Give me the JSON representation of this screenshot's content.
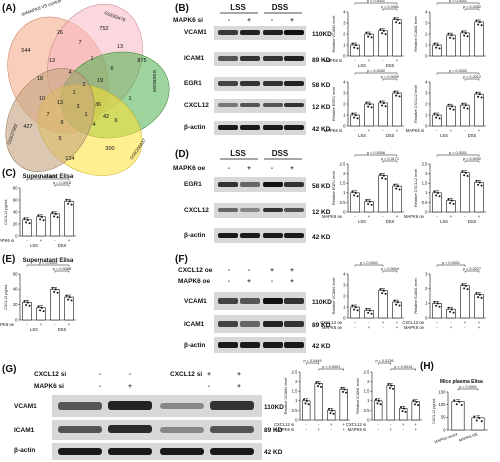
{
  "panel_A": {
    "letter": "(A)",
    "venn": {
      "sets": [
        {
          "label": "shMAPK6 VS control",
          "color": "#f4a582"
        },
        {
          "label": "GSE83478",
          "color": "#f7b6c2"
        },
        {
          "label": "GSE89399",
          "color": "#4daf4a"
        },
        {
          "label": "GSE206437",
          "color": "#ffe135"
        },
        {
          "label": "GSE27982",
          "color": "#c5a47e"
        }
      ],
      "counts": [
        "544",
        "26",
        "752",
        "875",
        "427",
        "300",
        "134",
        "18",
        "7",
        "13",
        "1",
        "6",
        "5",
        "36",
        "42",
        "13",
        "10",
        "13",
        "1",
        "1",
        "2",
        "4",
        "4",
        "7",
        "19",
        "8",
        "3",
        "6",
        "1"
      ]
    }
  },
  "panel_B": {
    "letter": "(B)",
    "conditions": [
      "LSS",
      "DSS"
    ],
    "treatment_label": "MAPK6 si",
    "lanes": [
      "-",
      "+",
      "-",
      "+"
    ],
    "rows": [
      {
        "name": "VCAM1",
        "kd": "110KD"
      },
      {
        "name": "ICAM1",
        "kd": "89 KD"
      },
      {
        "name": "EGR1",
        "kd": "58 KD"
      },
      {
        "name": "CXCL12",
        "kd": "12 KD"
      },
      {
        "name": "β-actin",
        "kd": "42 KD"
      }
    ]
  },
  "panel_C": {
    "letter": "(C)",
    "title": "Supernatant Elisa",
    "ylabel": "CXCL12 pg/mL"
  },
  "panel_D": {
    "letter": "(D)",
    "conditions": [
      "LSS",
      "DSS"
    ],
    "treatment_label": "MAPK6 oe",
    "lanes": [
      "-",
      "+",
      "-",
      "+"
    ],
    "rows": [
      {
        "name": "EGR1",
        "kd": "58 KD"
      },
      {
        "name": "CXCL12",
        "kd": "12 KD"
      },
      {
        "name": "β-actin",
        "kd": "42 KD"
      }
    ]
  },
  "panel_E": {
    "letter": "(E)",
    "title": "Supernatant Elisa",
    "ylabel": "CXCL12 pg/mL"
  },
  "panel_F": {
    "letter": "(F)",
    "treatments": [
      {
        "name": "CXCL12 oe",
        "signs": [
          "-",
          "-",
          "+",
          "+"
        ]
      },
      {
        "name": "MAPK6 oe",
        "signs": [
          "-",
          "+",
          "-",
          "+"
        ]
      }
    ],
    "rows": [
      {
        "name": "VCAM1",
        "kd": "110KD"
      },
      {
        "name": "ICAM1",
        "kd": "89 KD"
      },
      {
        "name": "β-actin",
        "kd": "42 KD"
      }
    ]
  },
  "panel_G": {
    "letter": "(G)",
    "treatments": [
      {
        "name": "CXCL12 si",
        "signs": [
          "-",
          "-",
          "+",
          "+"
        ]
      },
      {
        "name": "MAPK6 si",
        "signs": [
          "-",
          "+",
          "-",
          "+"
        ]
      }
    ],
    "rows": [
      {
        "name": "VCAM1",
        "kd": "110KD"
      },
      {
        "name": "ICAM1",
        "kd": "89 KD"
      },
      {
        "name": "β-actin",
        "kd": "42 KD"
      }
    ]
  },
  "panel_H": {
    "letter": "(H)",
    "title": "Mice plasma Elisa",
    "ylabel": "CXCL12 pg/mL"
  },
  "chart_data": [
    {
      "id": "B1",
      "type": "bar",
      "ylabel": "Relative VCAM1 level",
      "ylim": [
        0,
        4
      ],
      "yticks": [
        0,
        1,
        2,
        3,
        4
      ],
      "values": [
        1.0,
        2.0,
        2.3,
        3.3
      ],
      "annotations": [
        {
          "text": "p < 0.0001",
          "from": 0,
          "to": 3,
          "level": 1
        },
        {
          "text": "p = 0.0361",
          "from": 2,
          "to": 3,
          "level": 0
        }
      ],
      "xgroups": [
        "LSS",
        "DSS"
      ],
      "treatment": "MAPK6 si",
      "signs": [
        "-",
        "+",
        "-",
        "+"
      ]
    },
    {
      "id": "B2",
      "type": "bar",
      "ylabel": "Relative ICAM1 level",
      "ylim": [
        0,
        4
      ],
      "yticks": [
        0,
        1,
        2,
        3,
        4
      ],
      "values": [
        1.0,
        1.9,
        2.1,
        3.1
      ],
      "annotations": [
        {
          "text": "p = 0.0001",
          "from": 0,
          "to": 3,
          "level": 1
        },
        {
          "text": "p = 0.0452",
          "from": 2,
          "to": 3,
          "level": 0
        }
      ],
      "xgroups": [],
      "treatment": "",
      "signs": []
    },
    {
      "id": "B3",
      "type": "bar",
      "ylabel": "Relative EGR1 level",
      "ylim": [
        0,
        4
      ],
      "yticks": [
        0,
        1,
        2,
        3,
        4
      ],
      "values": [
        1.0,
        2.0,
        2.1,
        3.0
      ],
      "annotations": [
        {
          "text": "p = 0.0002",
          "from": 0,
          "to": 3,
          "level": 1
        },
        {
          "text": "p = 0.0009",
          "from": 2,
          "to": 3,
          "level": 0
        }
      ],
      "xgroups": [
        "LSS",
        "DSS"
      ],
      "treatment": "MAPK6 si",
      "signs": [
        "-",
        "+",
        "-",
        "+"
      ]
    },
    {
      "id": "B4",
      "type": "bar",
      "ylabel": "Relative CXCL12 level",
      "ylim": [
        0,
        4
      ],
      "yticks": [
        0,
        1,
        2,
        3,
        4
      ],
      "values": [
        1.0,
        1.8,
        1.9,
        2.9
      ],
      "annotations": [
        {
          "text": "p = 0.0002",
          "from": 0,
          "to": 3,
          "level": 1
        },
        {
          "text": "p = 0.0012",
          "from": 2,
          "to": 3,
          "level": 0
        }
      ],
      "xgroups": [
        "LSS",
        "DSS"
      ],
      "treatment": "MAPK6 si",
      "signs": [
        "-",
        "+",
        "-",
        "+"
      ]
    },
    {
      "id": "C",
      "type": "bar",
      "ylabel": "CXCL12 pg/mL",
      "ylim": [
        0,
        80
      ],
      "yticks": [
        0,
        20,
        40,
        60,
        80
      ],
      "values": [
        27,
        32,
        37,
        58
      ],
      "annotations": [
        {
          "text": "p = 0.0150",
          "from": 0,
          "to": 3,
          "level": 1
        },
        {
          "text": "p = 0.0018",
          "from": 2,
          "to": 3,
          "level": 0
        }
      ],
      "xgroups": [
        "LSS",
        "DSS"
      ],
      "treatment": "MAPK6 si",
      "signs": [
        "-",
        "+",
        "-",
        "+"
      ]
    },
    {
      "id": "D1",
      "type": "bar",
      "ylabel": "Relative EGR1 level",
      "ylim": [
        0,
        2.5
      ],
      "yticks": [
        0,
        0.5,
        1,
        1.5,
        2,
        2.5
      ],
      "values": [
        1.0,
        0.55,
        1.9,
        1.35
      ],
      "annotations": [
        {
          "text": "p = 0.0006",
          "from": 0,
          "to": 3,
          "level": 1
        },
        {
          "text": "p = 0.0171",
          "from": 2,
          "to": 3,
          "level": 0
        }
      ],
      "xgroups": [
        "LSS",
        "DSS"
      ],
      "treatment": "MAPK6 oe",
      "signs": [
        "-",
        "+",
        "-",
        "+"
      ]
    },
    {
      "id": "D2",
      "type": "bar",
      "ylabel": "Relative CXCL12 level",
      "ylim": [
        0,
        2.5
      ],
      "yticks": [
        0,
        0.5,
        1,
        1.5,
        2,
        2.5
      ],
      "values": [
        1.0,
        0.6,
        2.05,
        1.55
      ],
      "annotations": [
        {
          "text": "p < 0.0001",
          "from": 0,
          "to": 3,
          "level": 1
        },
        {
          "text": "p = 0.0092",
          "from": 2,
          "to": 3,
          "level": 0
        }
      ],
      "xgroups": [
        "LSS",
        "DSS"
      ],
      "treatment": "MAPK6 oe",
      "signs": [
        "-",
        "+",
        "-",
        "+"
      ]
    },
    {
      "id": "E",
      "type": "bar",
      "ylabel": "CXCL12 pg/mL",
      "ylim": [
        0,
        60
      ],
      "yticks": [
        0,
        20,
        40,
        60
      ],
      "values": [
        23,
        16,
        40,
        30
      ],
      "annotations": [
        {
          "text": "p = 0.0003",
          "from": 0,
          "to": 3,
          "level": 1
        },
        {
          "text": "p = 0.0368",
          "from": 2,
          "to": 3,
          "level": 0
        }
      ],
      "xgroups": [
        "LSS",
        "DSS"
      ],
      "treatment": "MAPK6 oe",
      "signs": [
        "-",
        "+",
        "-",
        "+"
      ]
    },
    {
      "id": "F1",
      "type": "bar",
      "ylabel": "Relative VCAM1 level",
      "ylim": [
        0,
        4
      ],
      "yticks": [
        0,
        1,
        2,
        3,
        4
      ],
      "values": [
        1.0,
        0.7,
        2.5,
        1.45
      ],
      "annotations": [
        {
          "text": "p < 0.0001",
          "from": 0,
          "to": 2,
          "level": 1
        },
        {
          "text": "p = 0.0004",
          "from": 2,
          "to": 3,
          "level": 0
        }
      ],
      "xgroups": [],
      "treatment": "",
      "signs": [],
      "treatments": [
        {
          "name": "CXCL12 oe",
          "signs": [
            "-",
            "-",
            "+",
            "+"
          ]
        },
        {
          "name": "MAPK6 oe",
          "signs": [
            "-",
            "+",
            "-",
            "+"
          ]
        }
      ]
    },
    {
      "id": "F2",
      "type": "bar",
      "ylabel": "Relative ICAM1 level",
      "ylim": [
        0,
        3
      ],
      "yticks": [
        0,
        1,
        2,
        3
      ],
      "values": [
        1.0,
        0.6,
        2.2,
        1.6
      ],
      "annotations": [
        {
          "text": "p < 0.0001",
          "from": 0,
          "to": 2,
          "level": 1
        },
        {
          "text": "p = 0.0227",
          "from": 2,
          "to": 3,
          "level": 0
        }
      ],
      "xgroups": [],
      "treatment": "",
      "signs": [],
      "treatments": [
        {
          "name": "CXCL12 oe",
          "signs": [
            "-",
            "-",
            "+",
            "+"
          ]
        },
        {
          "name": "MAPK6 oe",
          "signs": [
            "-",
            "+",
            "-",
            "+"
          ]
        }
      ]
    },
    {
      "id": "G1",
      "type": "bar",
      "ylabel": "Relative VCAM1 level",
      "ylim": [
        0,
        2.5
      ],
      "yticks": [
        0,
        0.5,
        1,
        1.5,
        2,
        2.5
      ],
      "values": [
        1.0,
        1.9,
        0.5,
        1.6
      ],
      "annotations": [
        {
          "text": "p = 0.0449",
          "from": 0,
          "to": 1,
          "level": 1
        },
        {
          "text": "p = 0.0001",
          "from": 1,
          "to": 3,
          "level": 0
        }
      ],
      "xgroups": [],
      "treatment": "",
      "signs": [],
      "treatments": [
        {
          "name": "CXCL12 si",
          "signs": [
            "-",
            "-",
            "+",
            "+"
          ]
        },
        {
          "name": "MAPK6 si",
          "signs": [
            "-",
            "+",
            "-",
            "+"
          ]
        }
      ]
    },
    {
      "id": "G2",
      "type": "bar",
      "ylabel": "Relative ICAM1 level",
      "ylim": [
        0,
        2.5
      ],
      "yticks": [
        0,
        0.5,
        1,
        1.5,
        2,
        2.5
      ],
      "values": [
        1.0,
        1.8,
        0.6,
        0.95
      ],
      "annotations": [
        {
          "text": "p = 0.0126",
          "from": 0,
          "to": 1,
          "level": 1
        },
        {
          "text": "p = 0.0013",
          "from": 1,
          "to": 3,
          "level": 0
        }
      ],
      "xgroups": [],
      "treatment": "",
      "signs": [],
      "treatments": [
        {
          "name": "CXCL12 si",
          "signs": [
            "-",
            "-",
            "+",
            "+"
          ]
        },
        {
          "name": "MAPK6 si",
          "signs": [
            "-",
            "+",
            "-",
            "+"
          ]
        }
      ]
    },
    {
      "id": "H",
      "type": "bar",
      "ylabel": "CXCL12 pg/mL",
      "ylim": [
        0,
        150
      ],
      "yticks": [
        0,
        50,
        100,
        150
      ],
      "values": [
        112,
        48
      ],
      "categories": [
        "MAPK6-vector",
        "MAPK6-OE"
      ],
      "annotations": [
        {
          "text": "p < 0.0001",
          "from": 0,
          "to": 1,
          "level": 0
        }
      ],
      "xgroups": [],
      "treatment": "",
      "signs": []
    }
  ]
}
